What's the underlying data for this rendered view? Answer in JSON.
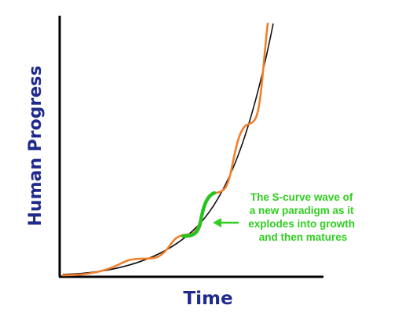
{
  "axes": {
    "x_label": "Time",
    "y_label": "Human Progress"
  },
  "annotation": {
    "lines": [
      "The S-curve wave of",
      "a new paradigm as it",
      "explodes into growth",
      "and then matures"
    ]
  },
  "colors": {
    "axis_label": "#1f2a8c",
    "trend_curve": "#111111",
    "wave_curve": "#f07f2b",
    "highlight": "#27c21f",
    "annotation_text": "#2fce1f"
  }
}
